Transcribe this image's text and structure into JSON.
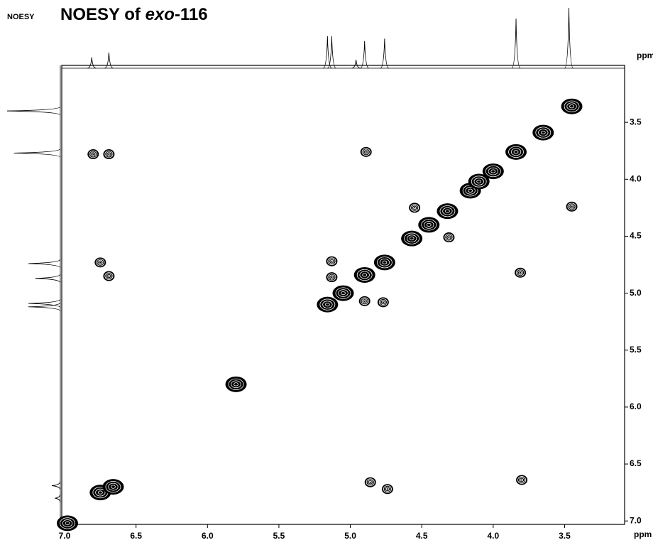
{
  "chart_data": {
    "type": "contour",
    "label": "NOESY",
    "title_parts": [
      "NOESY of ",
      "exo",
      "-116"
    ],
    "x_axis_label": "ppm",
    "y_axis_label": "ppm",
    "xlim": [
      7.02,
      3.08
    ],
    "ylim": [
      3.0,
      7.03
    ],
    "xticks": [
      {
        "value": 7.0,
        "label": "7.0"
      },
      6.5,
      {
        "value": 6.0,
        "label": "6.0"
      },
      5.5,
      {
        "value": 5.0,
        "label": "5.0"
      },
      4.5,
      {
        "value": 4.0,
        "label": "4.0"
      },
      3.5
    ],
    "yticks": [
      3.5,
      {
        "value": 4.0,
        "label": "4.0"
      },
      4.5,
      {
        "value": 5.0,
        "label": "5.0"
      },
      5.5,
      {
        "value": 6.0,
        "label": "6.0"
      },
      6.5,
      {
        "value": 7.0,
        "label": "7.0"
      }
    ],
    "color": "#000000",
    "cross_peaks": {
      "x": [
        6.69,
        6.8,
        6.75,
        6.69,
        6.75,
        6.66,
        6.98,
        5.8,
        4.89,
        4.55,
        4.31,
        5.13,
        5.13,
        4.9,
        4.77,
        4.86,
        4.74,
        3.8,
        3.81,
        3.45,
        5.16,
        5.05,
        4.9,
        4.76,
        4.57,
        4.45,
        4.32,
        4.16,
        4.1,
        4.0,
        3.84,
        3.65,
        3.45
      ],
      "y": [
        3.78,
        3.78,
        4.73,
        4.85,
        6.75,
        6.7,
        7.02,
        5.8,
        3.76,
        4.25,
        4.51,
        4.72,
        4.86,
        5.07,
        5.08,
        6.66,
        6.72,
        6.64,
        4.82,
        4.24,
        5.1,
        5.0,
        4.84,
        4.73,
        4.52,
        4.4,
        4.28,
        4.1,
        4.02,
        3.93,
        3.76,
        3.59,
        3.36
      ]
    },
    "top_projection": {
      "x": [
        6.81,
        6.69,
        5.16,
        5.13,
        4.96,
        4.9,
        4.76,
        3.84,
        3.47
      ],
      "intensity": [
        0.18,
        0.26,
        0.53,
        0.53,
        0.14,
        0.45,
        0.49,
        0.82,
        1.0
      ]
    },
    "left_projection": {
      "y": [
        3.4,
        3.77,
        4.74,
        4.87,
        5.09,
        5.12,
        6.69,
        6.8
      ],
      "intensity": [
        1.0,
        0.87,
        0.6,
        0.47,
        0.6,
        0.6,
        0.16,
        0.1
      ]
    }
  }
}
